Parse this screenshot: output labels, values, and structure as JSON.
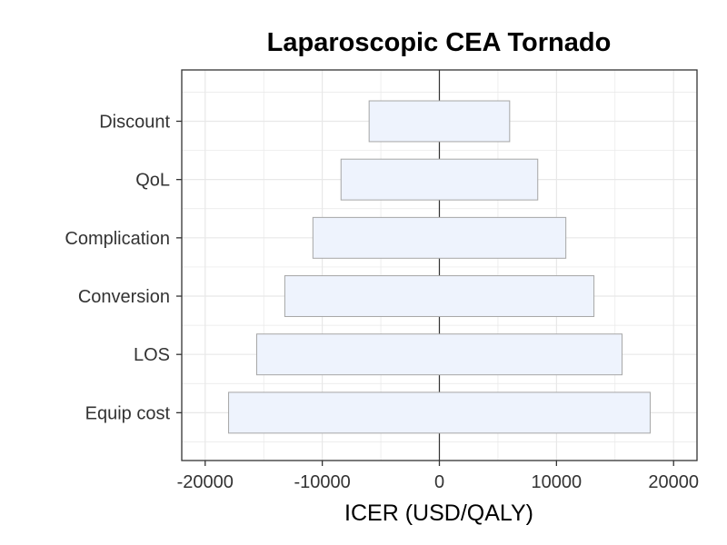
{
  "chart_data": {
    "type": "bar",
    "orientation": "horizontal",
    "title": "Laparoscopic CEA Tornado",
    "xlabel": "ICER (USD/QALY)",
    "ylabel": "",
    "categories": [
      "Discount",
      "QoL",
      "Complication",
      "Conversion",
      "LOS",
      "Equip cost"
    ],
    "bars": [
      {
        "category": "Discount",
        "low": -6000,
        "high": 6000
      },
      {
        "category": "QoL",
        "low": -8400,
        "high": 8400
      },
      {
        "category": "Complication",
        "low": -10800,
        "high": 10800
      },
      {
        "category": "Conversion",
        "low": -13200,
        "high": 13200
      },
      {
        "category": "LOS",
        "low": -15600,
        "high": 15600
      },
      {
        "category": "Equip cost",
        "low": -18000,
        "high": 18000
      }
    ],
    "xlim": [
      -22000,
      22000
    ],
    "xticks": [
      -20000,
      -10000,
      0,
      10000,
      20000
    ],
    "xtick_labels": [
      "-20000",
      "-10000",
      "0",
      "10000",
      "20000"
    ],
    "reference_line": 0,
    "grid": true,
    "colors": {
      "bar_fill": "#eef3fd",
      "bar_stroke": "#a6a6a6",
      "grid": "#e8e8e8",
      "panel_border": "#333333",
      "reference_line": "#333333"
    }
  }
}
